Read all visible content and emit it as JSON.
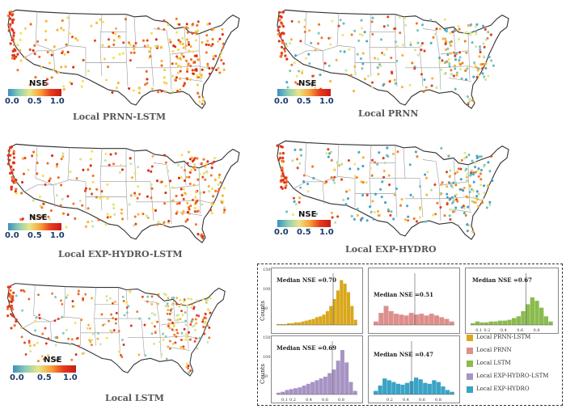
{
  "colorbar": {
    "label": "NSE",
    "ticks": [
      "0.0",
      "0.5",
      "1.0"
    ]
  },
  "maps": [
    {
      "id": "prnn-lstm",
      "title": "Local PRNN-LSTM",
      "median_nse": 0.7,
      "palette": [
        "#f5e050",
        "#f7b13a",
        "#ef7a2a",
        "#e8451f",
        "#d92a18",
        "#f3d04a",
        "#eb6a25"
      ]
    },
    {
      "id": "prnn",
      "title": "Local PRNN",
      "median_nse": 0.51,
      "palette": [
        "#4aa6c8",
        "#7fc6b8",
        "#c9e6a0",
        "#f2e27a",
        "#f7b13a",
        "#ee7a2a",
        "#e0401d",
        "#6cb8c4"
      ]
    },
    {
      "id": "exp-hydro-lstm",
      "title": "Local EXP-HYDRO-LSTM",
      "median_nse": 0.69,
      "palette": [
        "#f5e050",
        "#f7b13a",
        "#ef7a2a",
        "#e8451f",
        "#d92a18",
        "#c9e6a0",
        "#eb6a25"
      ]
    },
    {
      "id": "exp-hydro",
      "title": "Local EXP-HYDRO",
      "median_nse": 0.47,
      "palette": [
        "#3f9fcb",
        "#6fbfc0",
        "#b7dfa5",
        "#f2e27a",
        "#f7b13a",
        "#ee7a2a",
        "#e0401d",
        "#4aa6c8"
      ]
    },
    {
      "id": "lstm",
      "title": "Local LSTM",
      "median_nse": 0.67,
      "palette": [
        "#f5e050",
        "#f7b13a",
        "#ef7a2a",
        "#e8451f",
        "#d92a18",
        "#c9e6a0",
        "#eb6a25",
        "#7fc6b8"
      ]
    }
  ],
  "chart_data": [
    {
      "type": "bar",
      "name": "Local PRNN-LSTM",
      "label": "Median NSE =0.70",
      "color": "#d9a71b",
      "median": 0.7,
      "values": [
        1,
        1,
        1,
        2,
        2,
        3,
        3,
        4,
        5,
        6,
        7,
        9,
        10,
        12,
        16,
        22,
        30,
        40,
        52,
        48,
        38,
        22,
        6
      ]
    },
    {
      "type": "bar",
      "name": "Local PRNN",
      "label": "Median NSE =0.51",
      "color": "#dd8f8c",
      "median": 0.51,
      "values": [
        4,
        14,
        22,
        16,
        13,
        12,
        11,
        14,
        12,
        13,
        11,
        13,
        11,
        9,
        7,
        4
      ]
    },
    {
      "type": "bar",
      "name": "Local LSTM",
      "label": "Median NSE =0.67",
      "color": "#8bbb4f",
      "median": 0.67,
      "values": [
        2,
        4,
        3,
        3,
        4,
        4,
        5,
        5,
        6,
        8,
        10,
        16,
        24,
        32,
        28,
        20,
        10,
        4
      ],
      "xticks": [
        "0.1",
        "0.2",
        "0.4",
        "0.6",
        "0.8"
      ]
    },
    {
      "type": "bar",
      "name": "Local EXP-HYDRO-LSTM",
      "label": "Median NSE =0.69",
      "color": "#a793c4",
      "median": 0.69,
      "values": [
        2,
        3,
        5,
        6,
        7,
        8,
        10,
        12,
        14,
        16,
        18,
        20,
        24,
        28,
        38,
        50,
        36,
        14,
        4
      ],
      "xticks": [
        "0.1",
        "0.2",
        "0.4",
        "0.6",
        "0.8"
      ]
    },
    {
      "type": "bar",
      "name": "Local EXP-HYDRO",
      "label": "Median NSE =0.47",
      "color": "#3aa3c6",
      "median": 0.47,
      "values": [
        4,
        10,
        18,
        16,
        14,
        12,
        11,
        13,
        15,
        19,
        17,
        13,
        12,
        16,
        14,
        9,
        5,
        3
      ],
      "xticks": [
        "0.2",
        "0.4",
        "0.6",
        "0.8"
      ]
    }
  ],
  "hist_axis": {
    "counts_label": "Counts",
    "yticks": [
      "150",
      "100",
      "50"
    ]
  },
  "legend": [
    {
      "label": "Local PRNN-LSTM",
      "color": "#d9a71b"
    },
    {
      "label": "Local PRNN",
      "color": "#dd8f8c"
    },
    {
      "label": "Local LSTM",
      "color": "#8bbb4f"
    },
    {
      "label": "Local EXP-HYDRO-LSTM",
      "color": "#a793c4"
    },
    {
      "label": "Local EXP-HYDRO",
      "color": "#3aa3c6"
    }
  ]
}
